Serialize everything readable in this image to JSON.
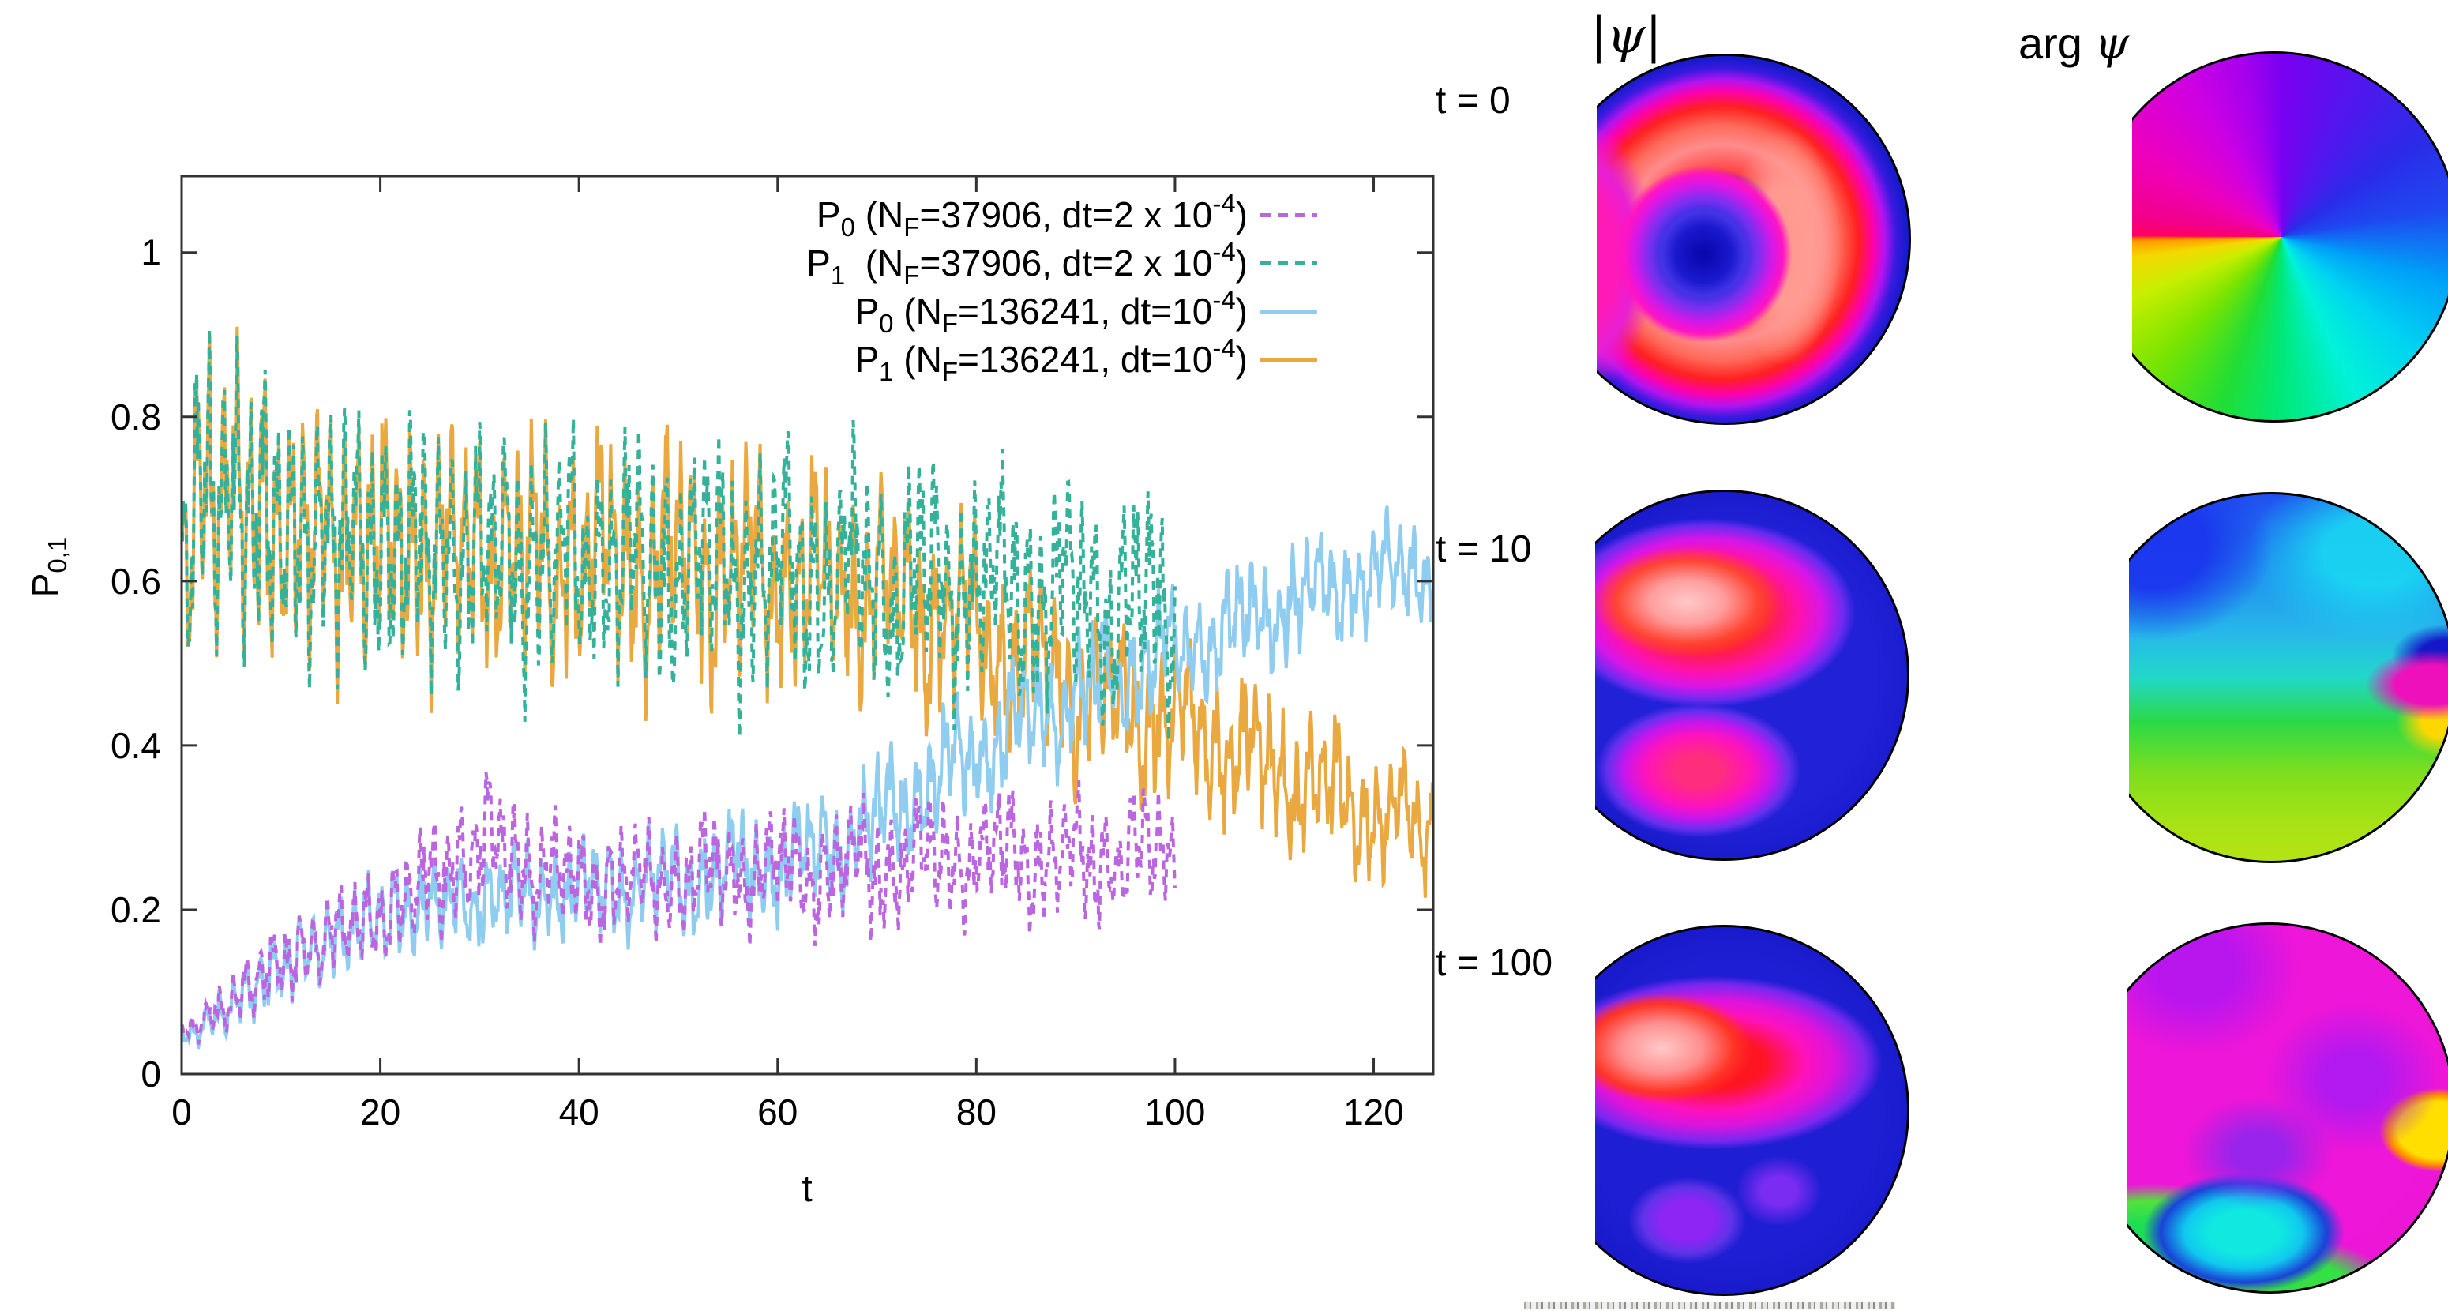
{
  "colors": {
    "p0_37906": "#bb66e0",
    "p1_37906": "#33b299",
    "p0_136241": "#8ecdef",
    "p1_136241": "#eaa940",
    "axis": "#333333"
  },
  "chart_data": {
    "type": "line",
    "title": "",
    "xlabel": "t",
    "ylabel_base": "P",
    "ylabel_sub": "0,1",
    "xlim": [
      0,
      126
    ],
    "ylim": [
      0,
      1.093
    ],
    "grid": false,
    "legend_position": "top-right-inside",
    "xticks": [
      "0",
      "20",
      "40",
      "60",
      "80",
      "100",
      "120"
    ],
    "xtick_values": [
      0,
      20,
      40,
      60,
      80,
      100,
      120
    ],
    "yticks": [
      "0",
      "0.2",
      "0.4",
      "0.6",
      "0.8",
      "1"
    ],
    "ytick_values": [
      0,
      0.2,
      0.4,
      0.6,
      0.8,
      1
    ],
    "series": [
      {
        "id": "p1_136241",
        "label_text": "P1 (NF=136241, dt=10-4)",
        "label_parts": [
          [
            "P",
            ""
          ],
          [
            "1",
            "sub"
          ],
          [
            " (N",
            ""
          ],
          [
            "F",
            "sub"
          ],
          [
            "=136241, dt=10",
            ""
          ],
          [
            "-4",
            "sup"
          ],
          [
            ")",
            ""
          ]
        ],
        "color": "#eaa940",
        "style": "solid",
        "t_end": 126,
        "phases": [
          0.8,
          2.1,
          4.0
        ],
        "seed": 7,
        "drift_phase": 0.9,
        "knots": [
          [
            0,
            0.62,
            0.18
          ],
          [
            2,
            0.72,
            0.2
          ],
          [
            5,
            0.7,
            0.19
          ],
          [
            10,
            0.66,
            0.17
          ],
          [
            20,
            0.645,
            0.16
          ],
          [
            30,
            0.635,
            0.15
          ],
          [
            40,
            0.625,
            0.15
          ],
          [
            50,
            0.62,
            0.14
          ],
          [
            60,
            0.61,
            0.13
          ],
          [
            70,
            0.585,
            0.13
          ],
          [
            78,
            0.55,
            0.12
          ],
          [
            85,
            0.5,
            0.11
          ],
          [
            92,
            0.46,
            0.1
          ],
          [
            100,
            0.43,
            0.1
          ],
          [
            108,
            0.385,
            0.09
          ],
          [
            115,
            0.345,
            0.09
          ],
          [
            121,
            0.31,
            0.08
          ],
          [
            126,
            0.3,
            0.08
          ]
        ]
      },
      {
        "id": "p0_136241",
        "label_text": "P0 (NF=136241, dt=10-4)",
        "label_parts": [
          [
            "P",
            ""
          ],
          [
            "0",
            "sub"
          ],
          [
            " (N",
            ""
          ],
          [
            "F",
            "sub"
          ],
          [
            "=136241, dt=10",
            ""
          ],
          [
            "-4",
            "sup"
          ],
          [
            ")",
            ""
          ]
        ],
        "color": "#8ecdef",
        "style": "solid",
        "t_end": 126,
        "phases": [
          2.6,
          0.9,
          1.7
        ],
        "seed": 11,
        "drift_phase": 1.3,
        "knots": [
          [
            0,
            0.045,
            0.015
          ],
          [
            3,
            0.065,
            0.03
          ],
          [
            8,
            0.115,
            0.045
          ],
          [
            15,
            0.165,
            0.055
          ],
          [
            22,
            0.2,
            0.06
          ],
          [
            30,
            0.215,
            0.06
          ],
          [
            40,
            0.225,
            0.06
          ],
          [
            50,
            0.235,
            0.065
          ],
          [
            60,
            0.255,
            0.07
          ],
          [
            68,
            0.29,
            0.07
          ],
          [
            75,
            0.35,
            0.075
          ],
          [
            82,
            0.41,
            0.075
          ],
          [
            90,
            0.46,
            0.075
          ],
          [
            97,
            0.5,
            0.075
          ],
          [
            104,
            0.535,
            0.07
          ],
          [
            111,
            0.57,
            0.07
          ],
          [
            118,
            0.6,
            0.065
          ],
          [
            126,
            0.62,
            0.065
          ]
        ]
      },
      {
        "id": "p1_37906",
        "label_text": "P1 (NF=37906, dt=2 x 10-4)",
        "label_parts": [
          [
            "P",
            ""
          ],
          [
            "1",
            "sub"
          ],
          [
            "  (N",
            ""
          ],
          [
            "F",
            "sub"
          ],
          [
            "=37906, dt=2 x 10",
            ""
          ],
          [
            "-4",
            "sup"
          ],
          [
            ")",
            ""
          ]
        ],
        "color": "#33b299",
        "style": "dashed",
        "t_end": 100,
        "phases": [
          0.8,
          2.1,
          4.0
        ],
        "seed": 7,
        "drift_phase": 0,
        "knots": [
          [
            0,
            0.62,
            0.18
          ],
          [
            2,
            0.72,
            0.2
          ],
          [
            5,
            0.7,
            0.19
          ],
          [
            10,
            0.66,
            0.17
          ],
          [
            20,
            0.645,
            0.16
          ],
          [
            30,
            0.635,
            0.15
          ],
          [
            40,
            0.625,
            0.15
          ],
          [
            50,
            0.62,
            0.14
          ],
          [
            60,
            0.615,
            0.14
          ],
          [
            70,
            0.6,
            0.14
          ],
          [
            80,
            0.6,
            0.13
          ],
          [
            90,
            0.585,
            0.13
          ],
          [
            100,
            0.57,
            0.13
          ]
        ]
      },
      {
        "id": "p0_37906",
        "label_text": "P0 (NF=37906, dt=2 x 10-4)",
        "label_parts": [
          [
            "P",
            ""
          ],
          [
            "0",
            "sub"
          ],
          [
            " (N",
            ""
          ],
          [
            "F",
            "sub"
          ],
          [
            "=37906, dt=2 x 10",
            ""
          ],
          [
            "-4",
            "sup"
          ],
          [
            ")",
            ""
          ]
        ],
        "color": "#bb66e0",
        "style": "dashed",
        "t_end": 100,
        "phases": [
          2.6,
          0.9,
          1.7
        ],
        "seed": 11,
        "drift_phase": 0,
        "knots": [
          [
            0,
            0.05,
            0.015
          ],
          [
            3,
            0.07,
            0.03
          ],
          [
            8,
            0.12,
            0.045
          ],
          [
            15,
            0.17,
            0.055
          ],
          [
            22,
            0.205,
            0.06
          ],
          [
            26,
            0.25,
            0.08
          ],
          [
            31,
            0.285,
            0.085
          ],
          [
            36,
            0.25,
            0.07
          ],
          [
            40,
            0.235,
            0.065
          ],
          [
            50,
            0.24,
            0.065
          ],
          [
            60,
            0.25,
            0.07
          ],
          [
            70,
            0.25,
            0.075
          ],
          [
            80,
            0.27,
            0.075
          ],
          [
            90,
            0.26,
            0.075
          ],
          [
            100,
            0.27,
            0.075
          ]
        ]
      }
    ],
    "legend_order": [
      "p0_37906",
      "p1_37906",
      "p0_136241",
      "p1_136241"
    ]
  },
  "right_panel": {
    "col1_header": "|ψ|",
    "col2_header_prefix": "arg ",
    "col2_header_symbol": "ψ",
    "rows": [
      {
        "label": "t = 0"
      },
      {
        "label": "t = 10"
      },
      {
        "label": "t = 100"
      }
    ]
  }
}
